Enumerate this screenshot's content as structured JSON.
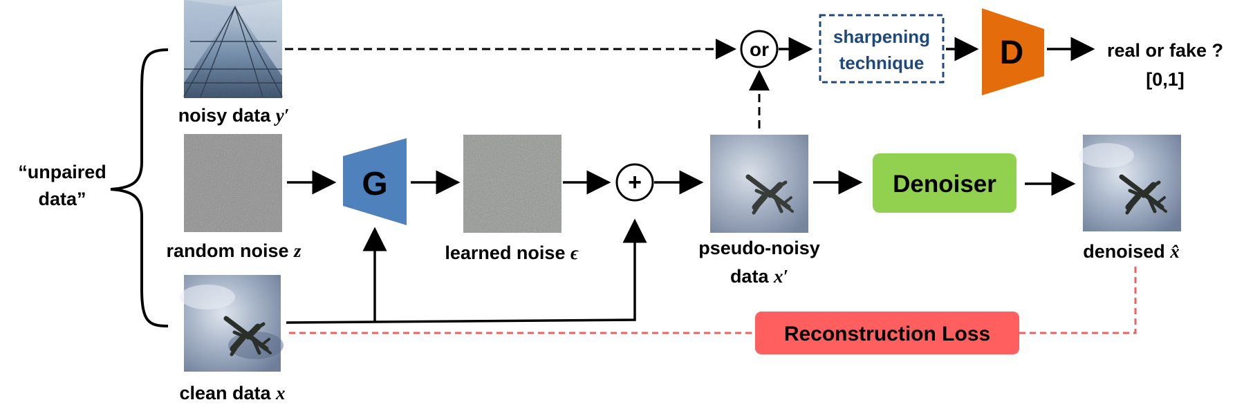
{
  "inputs_group": {
    "label_line1": "“unpaired",
    "label_line2": "data”"
  },
  "images": {
    "noisy_data": {
      "label_text": "noisy data ",
      "symbol": "y′"
    },
    "random_noise": {
      "label_text": "random noise ",
      "symbol": "z"
    },
    "clean_data": {
      "label_text": "clean data ",
      "symbol": "x"
    },
    "learned_noise": {
      "label_text": "learned noise ",
      "symbol": "ϵ"
    },
    "pseudo_noisy": {
      "label_line1": "pseudo-noisy",
      "label_text": "data ",
      "symbol": "x′"
    },
    "denoised": {
      "label_text": "denoised ",
      "symbol": "x̂"
    }
  },
  "blocks": {
    "generator": {
      "label": "G",
      "color": "#4f81bd"
    },
    "discriminator": {
      "label": "D",
      "color": "#e46c0a"
    },
    "denoiser": {
      "label": "Denoiser",
      "color": "#92d050"
    },
    "sharpening": {
      "line1": "sharpening",
      "line2": "technique",
      "color": "#1f497d"
    },
    "reconstruction_loss": {
      "label": "Reconstruction Loss",
      "color": "#ff5f5f"
    }
  },
  "operators": {
    "or": "or",
    "plus": "+"
  },
  "output": {
    "line1": "real or fake ?",
    "line2": "[0,1]"
  },
  "colors": {
    "arrow": "#000000",
    "loss_dash": "#f06060",
    "sky": "#8a9bb5"
  }
}
